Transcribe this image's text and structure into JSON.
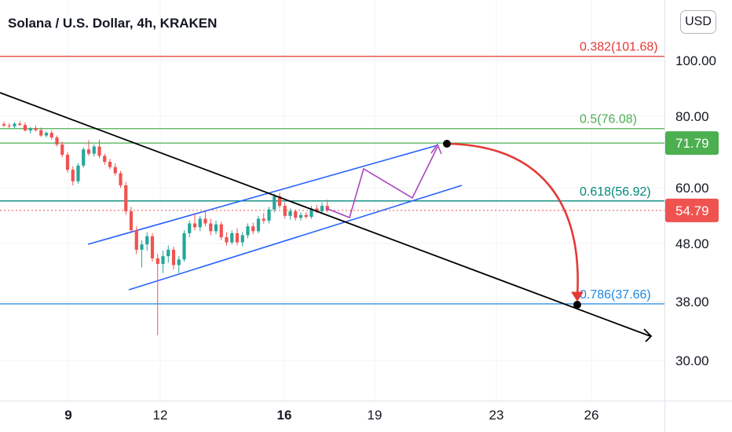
{
  "header": {
    "title": "Solana / U.S. Dollar, 4h, KRAKEN",
    "currency_button": "USD"
  },
  "colors": {
    "bull": "#26a69a",
    "bear": "#ef5350",
    "fib_red": "#e53935",
    "fib_green": "#4caf50",
    "fib_teal": "#00897b",
    "fib_blue": "#1e88e5",
    "channel": "#2962ff",
    "path": "#ab47bc",
    "trend": "#000000",
    "badge_green": "#4caf50",
    "badge_red": "#ef5350"
  },
  "chart_data": {
    "type": "candlestick",
    "symbol": "Solana / U.S. Dollar",
    "interval": "4h",
    "exchange": "KRAKEN",
    "y_ticks": [
      "100.00",
      "80.00",
      "60.00",
      "48.00",
      "38.00",
      "30.00"
    ],
    "x_ticks": [
      "9",
      "12",
      "16",
      "19",
      "23",
      "26"
    ],
    "price_labels": [
      {
        "text": "71.79",
        "value": 71.79,
        "style": "green"
      },
      {
        "text": "54.79",
        "value": 54.79,
        "style": "red"
      }
    ],
    "fib_levels": [
      {
        "label": "0.382(101.68)",
        "value": 101.68,
        "color": "red"
      },
      {
        "label": "0.5(76.08)",
        "value": 76.08,
        "color": "green"
      },
      {
        "label": "0.618(56.92)",
        "value": 56.92,
        "color": "teal"
      },
      {
        "label": "0.786(37.66)",
        "value": 37.66,
        "color": "blue"
      }
    ],
    "candles": [
      {
        "o": 77.5,
        "h": 78.2,
        "l": 76.6,
        "c": 77.0
      },
      {
        "o": 77.0,
        "h": 77.8,
        "l": 76.3,
        "c": 76.8
      },
      {
        "o": 76.8,
        "h": 78.0,
        "l": 76.0,
        "c": 77.6
      },
      {
        "o": 77.6,
        "h": 78.4,
        "l": 76.9,
        "c": 77.2
      },
      {
        "o": 77.2,
        "h": 78.0,
        "l": 75.2,
        "c": 75.5
      },
      {
        "o": 75.5,
        "h": 76.6,
        "l": 74.6,
        "c": 76.2
      },
      {
        "o": 76.2,
        "h": 77.0,
        "l": 75.2,
        "c": 75.6
      },
      {
        "o": 75.6,
        "h": 76.4,
        "l": 73.6,
        "c": 74.0
      },
      {
        "o": 74.0,
        "h": 75.2,
        "l": 73.4,
        "c": 74.8
      },
      {
        "o": 74.8,
        "h": 75.6,
        "l": 72.8,
        "c": 73.4
      },
      {
        "o": 73.4,
        "h": 74.0,
        "l": 70.8,
        "c": 71.4
      },
      {
        "o": 71.4,
        "h": 72.2,
        "l": 67.8,
        "c": 68.5
      },
      {
        "o": 68.5,
        "h": 69.2,
        "l": 63.8,
        "c": 64.5
      },
      {
        "o": 64.5,
        "h": 65.4,
        "l": 60.6,
        "c": 61.6
      },
      {
        "o": 61.6,
        "h": 66.2,
        "l": 61.0,
        "c": 65.6
      },
      {
        "o": 65.6,
        "h": 70.6,
        "l": 65.0,
        "c": 70.0
      },
      {
        "o": 70.0,
        "h": 72.6,
        "l": 68.2,
        "c": 68.8
      },
      {
        "o": 68.8,
        "h": 71.4,
        "l": 68.0,
        "c": 70.8
      },
      {
        "o": 70.8,
        "h": 72.8,
        "l": 67.6,
        "c": 68.2
      },
      {
        "o": 68.2,
        "h": 68.8,
        "l": 65.8,
        "c": 66.6
      },
      {
        "o": 66.6,
        "h": 67.4,
        "l": 64.6,
        "c": 65.2
      },
      {
        "o": 65.2,
        "h": 66.2,
        "l": 63.0,
        "c": 63.6
      },
      {
        "o": 63.6,
        "h": 64.2,
        "l": 60.0,
        "c": 60.6
      },
      {
        "o": 60.6,
        "h": 61.4,
        "l": 53.8,
        "c": 54.6
      },
      {
        "o": 54.6,
        "h": 55.6,
        "l": 50.0,
        "c": 50.6
      },
      {
        "o": 50.6,
        "h": 51.4,
        "l": 46.0,
        "c": 46.8
      },
      {
        "o": 46.8,
        "h": 48.6,
        "l": 43.6,
        "c": 47.8
      },
      {
        "o": 47.8,
        "h": 50.2,
        "l": 46.6,
        "c": 49.4
      },
      {
        "o": 49.4,
        "h": 50.0,
        "l": 44.6,
        "c": 45.2
      },
      {
        "o": 45.2,
        "h": 46.0,
        "l": 33.2,
        "c": 44.2
      },
      {
        "o": 44.2,
        "h": 46.6,
        "l": 42.6,
        "c": 45.6
      },
      {
        "o": 45.6,
        "h": 47.6,
        "l": 44.4,
        "c": 46.8
      },
      {
        "o": 46.8,
        "h": 47.4,
        "l": 43.2,
        "c": 44.0
      },
      {
        "o": 44.0,
        "h": 45.6,
        "l": 42.6,
        "c": 45.0
      },
      {
        "o": 45.0,
        "h": 50.6,
        "l": 44.6,
        "c": 50.0
      },
      {
        "o": 50.0,
        "h": 52.6,
        "l": 49.2,
        "c": 52.0
      },
      {
        "o": 52.0,
        "h": 54.2,
        "l": 50.6,
        "c": 51.2
      },
      {
        "o": 51.2,
        "h": 53.6,
        "l": 50.4,
        "c": 53.0
      },
      {
        "o": 53.0,
        "h": 54.8,
        "l": 51.4,
        "c": 52.0
      },
      {
        "o": 52.0,
        "h": 53.0,
        "l": 49.6,
        "c": 50.4
      },
      {
        "o": 50.4,
        "h": 52.6,
        "l": 49.8,
        "c": 51.8
      },
      {
        "o": 51.8,
        "h": 52.4,
        "l": 48.6,
        "c": 49.2
      },
      {
        "o": 49.2,
        "h": 50.2,
        "l": 47.6,
        "c": 48.2
      },
      {
        "o": 48.2,
        "h": 50.6,
        "l": 47.8,
        "c": 50.0
      },
      {
        "o": 50.0,
        "h": 51.0,
        "l": 47.6,
        "c": 48.2
      },
      {
        "o": 48.2,
        "h": 50.2,
        "l": 47.4,
        "c": 49.6
      },
      {
        "o": 49.6,
        "h": 52.0,
        "l": 49.0,
        "c": 51.4
      },
      {
        "o": 51.4,
        "h": 52.2,
        "l": 49.8,
        "c": 50.4
      },
      {
        "o": 50.4,
        "h": 53.6,
        "l": 50.0,
        "c": 53.0
      },
      {
        "o": 53.0,
        "h": 54.2,
        "l": 52.0,
        "c": 52.6
      },
      {
        "o": 52.6,
        "h": 55.6,
        "l": 52.0,
        "c": 55.0
      },
      {
        "o": 55.0,
        "h": 58.6,
        "l": 54.4,
        "c": 58.0
      },
      {
        "o": 58.0,
        "h": 58.8,
        "l": 55.2,
        "c": 55.8
      },
      {
        "o": 55.8,
        "h": 56.6,
        "l": 53.0,
        "c": 53.6
      },
      {
        "o": 53.6,
        "h": 55.2,
        "l": 52.8,
        "c": 54.6
      },
      {
        "o": 54.6,
        "h": 55.0,
        "l": 52.6,
        "c": 53.2
      },
      {
        "o": 53.2,
        "h": 54.4,
        "l": 52.6,
        "c": 53.8
      },
      {
        "o": 53.8,
        "h": 54.4,
        "l": 53.0,
        "c": 53.4
      },
      {
        "o": 53.4,
        "h": 55.8,
        "l": 53.0,
        "c": 55.2
      },
      {
        "o": 55.2,
        "h": 56.0,
        "l": 54.2,
        "c": 54.6
      },
      {
        "o": 54.6,
        "h": 56.6,
        "l": 54.0,
        "c": 55.8
      },
      {
        "o": 55.8,
        "h": 57.2,
        "l": 54.4,
        "c": 54.79
      }
    ]
  }
}
